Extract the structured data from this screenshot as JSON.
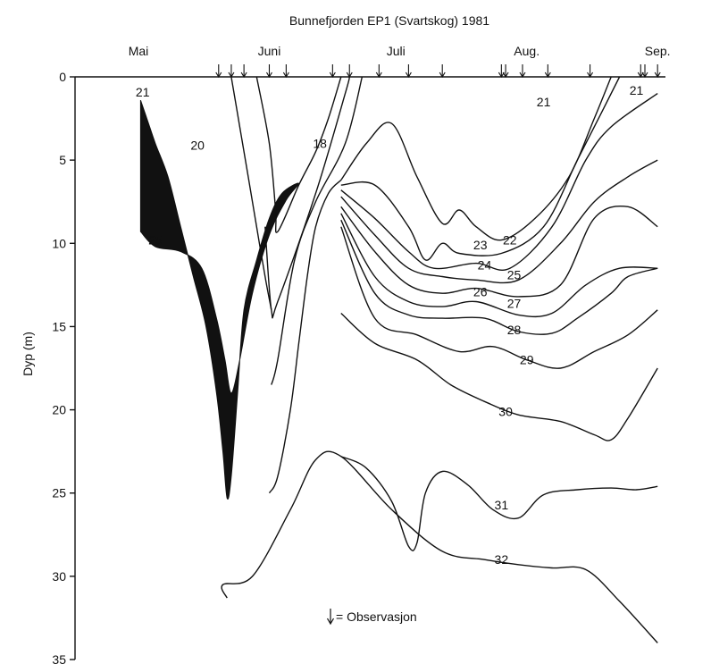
{
  "chart_data": {
    "type": "contour",
    "title": "Bunnefjorden EP1 (Svartskog) 1981",
    "ylabel": "Dyp (m)",
    "xlabel": "",
    "months": [
      {
        "label": "Mai",
        "day": 0
      },
      {
        "label": "Juni",
        "day": 31
      },
      {
        "label": "Juli",
        "day": 61
      },
      {
        "label": "Aug.",
        "day": 92
      },
      {
        "label": "Sep.",
        "day": 123
      }
    ],
    "ylim": [
      0,
      35
    ],
    "yticks": [
      0,
      5,
      10,
      15,
      20,
      25,
      30,
      35
    ],
    "xlim_days": [
      -10,
      130
    ],
    "observation_days": [
      19,
      22,
      25,
      31,
      35,
      46,
      50,
      57,
      64,
      72,
      86,
      87,
      91,
      97,
      107,
      119,
      120,
      123
    ],
    "legend_text": "= Observasjon",
    "filled_region_label": "21–25",
    "contours": [
      {
        "label": "20",
        "points": [
          [
            22,
            0
          ],
          [
            24,
            3
          ],
          [
            26,
            6
          ],
          [
            28,
            9
          ],
          [
            30,
            12
          ],
          [
            31.5,
            14
          ]
        ]
      },
      {
        "label": "18",
        "points": [
          [
            28,
            0
          ],
          [
            31,
            4
          ],
          [
            32.5,
            8
          ],
          [
            33,
            9.3
          ],
          [
            38,
            6.5
          ],
          [
            42,
            4.5
          ],
          [
            45,
            2.5
          ],
          [
            48,
            0
          ]
        ]
      },
      {
        "label": "",
        "points": [
          [
            30,
            9
          ],
          [
            31.5,
            14
          ],
          [
            33,
            13.5
          ],
          [
            42,
            7
          ],
          [
            49,
            1
          ],
          [
            50,
            0
          ]
        ]
      },
      {
        "label": "",
        "points": [
          [
            31.5,
            18.5
          ],
          [
            33,
            17
          ],
          [
            37,
            11
          ],
          [
            42,
            7.5
          ],
          [
            49,
            4
          ],
          [
            53,
            0
          ]
        ]
      },
      {
        "label": "",
        "points": [
          [
            31,
            25
          ],
          [
            33,
            24
          ],
          [
            36,
            20
          ],
          [
            38,
            16
          ],
          [
            40,
            12
          ],
          [
            42,
            9
          ],
          [
            45,
            7
          ],
          [
            48,
            6.2
          ]
        ]
      },
      {
        "label": "22",
        "points": [
          [
            48,
            6.2
          ],
          [
            54,
            4
          ],
          [
            60,
            2.8
          ],
          [
            66,
            6
          ],
          [
            72,
            8.8
          ],
          [
            76,
            8
          ],
          [
            80,
            9
          ],
          [
            86,
            9.8
          ],
          [
            94,
            8.5
          ],
          [
            102,
            6
          ],
          [
            108,
            2.5
          ],
          [
            112,
            0
          ]
        ]
      },
      {
        "label": "23",
        "points": [
          [
            48,
            6.5
          ],
          [
            56,
            6.5
          ],
          [
            64,
            9
          ],
          [
            68,
            11
          ],
          [
            72,
            10
          ],
          [
            76,
            10.6
          ],
          [
            86,
            10.6
          ],
          [
            96,
            9
          ],
          [
            104,
            5
          ],
          [
            110,
            2
          ],
          [
            114,
            0
          ]
        ]
      },
      {
        "label": "24",
        "points": [
          [
            48,
            6.8
          ],
          [
            56,
            8.5
          ],
          [
            64,
            10.5
          ],
          [
            70,
            11.5
          ],
          [
            80,
            11.2
          ],
          [
            88,
            11.5
          ],
          [
            98,
            9
          ],
          [
            106,
            5
          ],
          [
            112,
            3
          ],
          [
            123,
            1
          ]
        ]
      },
      {
        "label": "25",
        "points": [
          [
            48,
            7.2
          ],
          [
            56,
            9.5
          ],
          [
            64,
            11.5
          ],
          [
            72,
            12
          ],
          [
            80,
            12.2
          ],
          [
            90,
            12.2
          ],
          [
            100,
            10
          ],
          [
            108,
            7.5
          ],
          [
            116,
            6
          ],
          [
            123,
            5
          ]
        ]
      },
      {
        "label": "26",
        "points": [
          [
            48,
            7.8
          ],
          [
            56,
            10.5
          ],
          [
            64,
            12.5
          ],
          [
            72,
            13
          ],
          [
            80,
            12.7
          ],
          [
            90,
            13.2
          ],
          [
            100,
            12.5
          ],
          [
            108,
            8.5
          ],
          [
            116,
            7.8
          ],
          [
            123,
            9
          ]
        ]
      },
      {
        "label": "27",
        "points": [
          [
            48,
            8.2
          ],
          [
            56,
            12
          ],
          [
            64,
            13.5
          ],
          [
            72,
            13.8
          ],
          [
            80,
            13.5
          ],
          [
            90,
            14.3
          ],
          [
            98,
            14.2
          ],
          [
            106,
            12.5
          ],
          [
            114,
            11.5
          ],
          [
            123,
            11.5
          ]
        ]
      },
      {
        "label": "28",
        "points": [
          [
            48,
            8.6
          ],
          [
            56,
            13
          ],
          [
            64,
            14.3
          ],
          [
            72,
            14.5
          ],
          [
            82,
            14.5
          ],
          [
            90,
            15.3
          ],
          [
            98,
            15.4
          ],
          [
            104,
            14.5
          ],
          [
            112,
            13
          ],
          [
            116,
            12
          ],
          [
            123,
            11.5
          ]
        ]
      },
      {
        "label": "29",
        "points": [
          [
            48,
            9
          ],
          [
            56,
            14.5
          ],
          [
            66,
            15.5
          ],
          [
            76,
            16.5
          ],
          [
            84,
            16.2
          ],
          [
            92,
            17
          ],
          [
            100,
            17.5
          ],
          [
            108,
            16.5
          ],
          [
            116,
            15.5
          ],
          [
            123,
            14
          ]
        ]
      },
      {
        "label": "30",
        "points": [
          [
            48,
            14.2
          ],
          [
            56,
            16
          ],
          [
            66,
            17
          ],
          [
            74,
            18.5
          ],
          [
            82,
            19.5
          ],
          [
            90,
            20.3
          ],
          [
            100,
            20.7
          ],
          [
            108,
            21.5
          ],
          [
            112,
            21.8
          ],
          [
            116,
            20.5
          ],
          [
            123,
            17.5
          ]
        ]
      },
      {
        "label": "31",
        "points": [
          [
            48,
            22.8
          ],
          [
            54,
            23.5
          ],
          [
            60,
            25.5
          ],
          [
            64,
            28.2
          ],
          [
            66,
            28
          ],
          [
            68,
            25
          ],
          [
            72,
            23.7
          ],
          [
            78,
            24.5
          ],
          [
            84,
            26
          ],
          [
            90,
            26.5
          ],
          [
            96,
            25.1
          ],
          [
            104,
            24.8
          ],
          [
            112,
            24.7
          ],
          [
            118,
            24.8
          ],
          [
            123,
            24.6
          ]
        ]
      },
      {
        "label": "32",
        "points": [
          [
            21,
            31.3
          ],
          [
            20,
            30.5
          ],
          [
            27,
            30
          ],
          [
            36,
            26
          ],
          [
            42,
            23
          ],
          [
            48,
            22.8
          ],
          [
            60,
            26
          ],
          [
            72,
            28.5
          ],
          [
            82,
            29
          ],
          [
            90,
            29.3
          ],
          [
            98,
            29.5
          ],
          [
            106,
            29.6
          ],
          [
            114,
            31.5
          ],
          [
            123,
            34
          ]
        ]
      }
    ],
    "contour_labels": [
      {
        "text": "21",
        "day": 1,
        "depth": 0.9
      },
      {
        "text": "20",
        "day": 14,
        "depth": 4.1
      },
      {
        "text": "18",
        "day": 43,
        "depth": 4.0
      },
      {
        "text": "21",
        "day": 96,
        "depth": 1.5
      },
      {
        "text": "21",
        "day": 118,
        "depth": 0.8
      },
      {
        "text": "25",
        "day": 4,
        "depth": 9.8
      },
      {
        "text": "22",
        "day": 88,
        "depth": 9.8
      },
      {
        "text": "23",
        "day": 81,
        "depth": 10.1
      },
      {
        "text": "24",
        "day": 82,
        "depth": 11.3
      },
      {
        "text": "25",
        "day": 89,
        "depth": 11.9
      },
      {
        "text": "26",
        "day": 81,
        "depth": 12.9
      },
      {
        "text": "27",
        "day": 89,
        "depth": 13.6
      },
      {
        "text": "28",
        "day": 89,
        "depth": 15.2
      },
      {
        "text": "29",
        "day": 92,
        "depth": 17.0
      },
      {
        "text": "30",
        "day": 87,
        "depth": 20.1
      },
      {
        "text": "31",
        "day": 86,
        "depth": 25.7
      },
      {
        "text": "32",
        "day": 86,
        "depth": 29.0
      }
    ]
  }
}
